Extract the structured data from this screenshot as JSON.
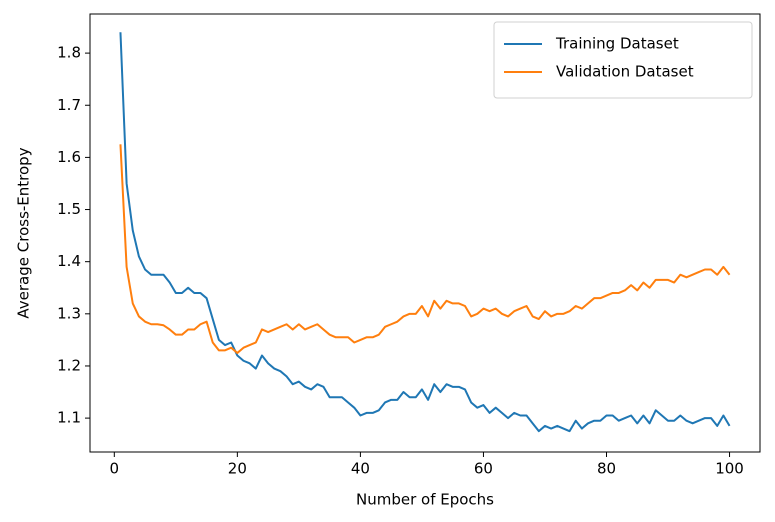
{
  "chart_data": {
    "type": "line",
    "xlabel": "Number of Epochs",
    "ylabel": "Average Cross-Entropy",
    "x": [
      1,
      2,
      3,
      4,
      5,
      6,
      7,
      8,
      9,
      10,
      11,
      12,
      13,
      14,
      15,
      16,
      17,
      18,
      19,
      20,
      21,
      22,
      23,
      24,
      25,
      26,
      27,
      28,
      29,
      30,
      31,
      32,
      33,
      34,
      35,
      36,
      37,
      38,
      39,
      40,
      41,
      42,
      43,
      44,
      45,
      46,
      47,
      48,
      49,
      50,
      51,
      52,
      53,
      54,
      55,
      56,
      57,
      58,
      59,
      60,
      61,
      62,
      63,
      64,
      65,
      66,
      67,
      68,
      69,
      70,
      71,
      72,
      73,
      74,
      75,
      76,
      77,
      78,
      79,
      80,
      81,
      82,
      83,
      84,
      85,
      86,
      87,
      88,
      89,
      90,
      91,
      92,
      93,
      94,
      95,
      96,
      97,
      98,
      99,
      100
    ],
    "series": [
      {
        "name": "Training Dataset",
        "color": "#1f77b4",
        "values": [
          1.84,
          1.55,
          1.46,
          1.41,
          1.385,
          1.375,
          1.375,
          1.375,
          1.36,
          1.34,
          1.34,
          1.35,
          1.34,
          1.34,
          1.33,
          1.29,
          1.25,
          1.24,
          1.245,
          1.22,
          1.21,
          1.205,
          1.195,
          1.22,
          1.205,
          1.195,
          1.19,
          1.18,
          1.165,
          1.17,
          1.16,
          1.155,
          1.165,
          1.16,
          1.14,
          1.14,
          1.14,
          1.13,
          1.12,
          1.105,
          1.11,
          1.11,
          1.115,
          1.13,
          1.135,
          1.135,
          1.15,
          1.14,
          1.14,
          1.155,
          1.135,
          1.165,
          1.15,
          1.165,
          1.16,
          1.16,
          1.155,
          1.13,
          1.12,
          1.125,
          1.11,
          1.12,
          1.11,
          1.1,
          1.11,
          1.105,
          1.105,
          1.09,
          1.075,
          1.085,
          1.08,
          1.085,
          1.08,
          1.075,
          1.095,
          1.08,
          1.09,
          1.095,
          1.095,
          1.105,
          1.105,
          1.095,
          1.1,
          1.105,
          1.09,
          1.105,
          1.09,
          1.115,
          1.105,
          1.095,
          1.095,
          1.105,
          1.095,
          1.09,
          1.095,
          1.1,
          1.1,
          1.085,
          1.105,
          1.085
        ]
      },
      {
        "name": "Validation Dataset",
        "color": "#ff7f0e",
        "values": [
          1.625,
          1.39,
          1.32,
          1.295,
          1.285,
          1.28,
          1.28,
          1.278,
          1.27,
          1.26,
          1.26,
          1.27,
          1.27,
          1.28,
          1.285,
          1.245,
          1.23,
          1.23,
          1.235,
          1.225,
          1.235,
          1.24,
          1.245,
          1.27,
          1.265,
          1.27,
          1.275,
          1.28,
          1.27,
          1.28,
          1.27,
          1.275,
          1.28,
          1.27,
          1.26,
          1.255,
          1.255,
          1.255,
          1.245,
          1.25,
          1.255,
          1.255,
          1.26,
          1.275,
          1.28,
          1.285,
          1.295,
          1.3,
          1.3,
          1.315,
          1.295,
          1.325,
          1.31,
          1.325,
          1.32,
          1.32,
          1.315,
          1.295,
          1.3,
          1.31,
          1.305,
          1.31,
          1.3,
          1.295,
          1.305,
          1.31,
          1.315,
          1.295,
          1.29,
          1.305,
          1.295,
          1.3,
          1.3,
          1.305,
          1.315,
          1.31,
          1.32,
          1.33,
          1.33,
          1.335,
          1.34,
          1.34,
          1.345,
          1.355,
          1.345,
          1.36,
          1.35,
          1.365,
          1.365,
          1.365,
          1.36,
          1.375,
          1.37,
          1.375,
          1.38,
          1.385,
          1.385,
          1.375,
          1.39,
          1.375
        ]
      }
    ],
    "xlim": [
      -3.95,
      104.95
    ],
    "ylim": [
      1.035,
      1.875
    ],
    "xticks": [
      0,
      20,
      40,
      60,
      80,
      100
    ],
    "yticks": [
      1.1,
      1.2,
      1.3,
      1.4,
      1.5,
      1.6,
      1.7,
      1.8
    ],
    "grid": false,
    "legend": "upper right"
  }
}
